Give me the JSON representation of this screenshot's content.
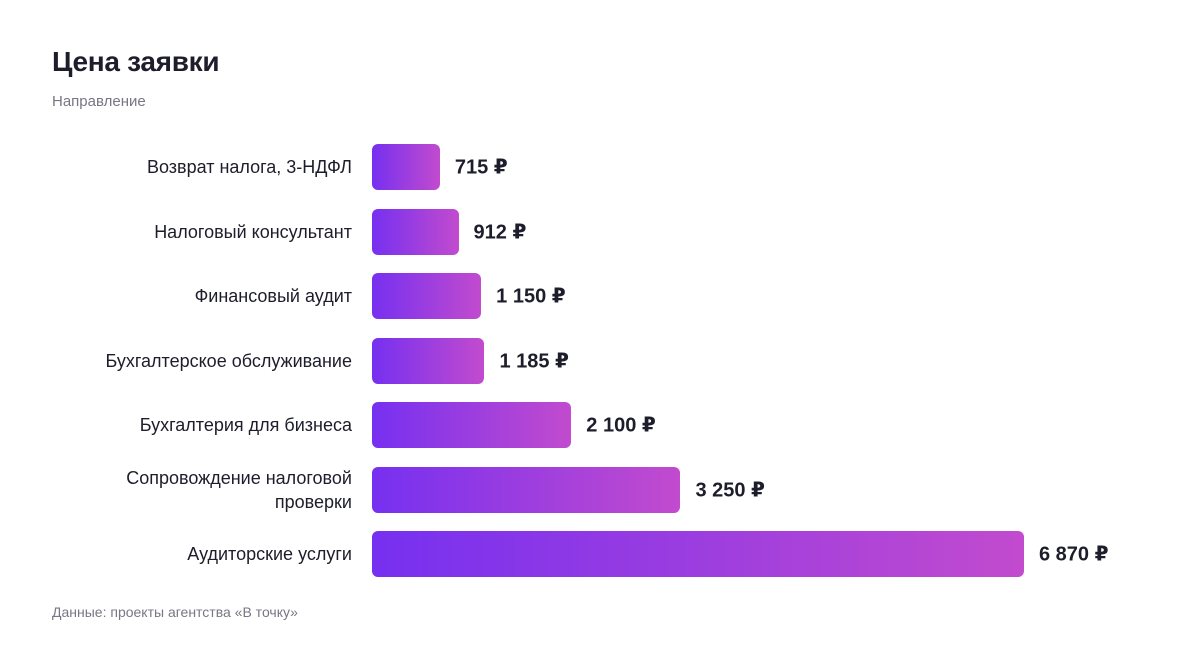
{
  "chart_data": {
    "type": "bar",
    "orientation": "horizontal",
    "title": "Цена заявки",
    "y_label": "Направление",
    "source": "Данные: проекты агентства «В точку»",
    "categories": [
      "Возврат налога, 3-НДФЛ",
      "Налоговый консультант",
      "Финансовый аудит",
      "Бухгалтерское обслуживание",
      "Бухгалтерия для бизнеса",
      "Сопровождение налоговой проверки",
      "Аудиторские услуги"
    ],
    "values": [
      715,
      912,
      1150,
      1185,
      2100,
      3250,
      6870
    ],
    "value_labels": [
      "715 ₽",
      "912 ₽",
      "1 150 ₽",
      "1 185 ₽",
      "2 100 ₽",
      "3 250 ₽",
      "6 870 ₽"
    ],
    "gradient": [
      "#7630f0",
      "#c24bce"
    ]
  }
}
